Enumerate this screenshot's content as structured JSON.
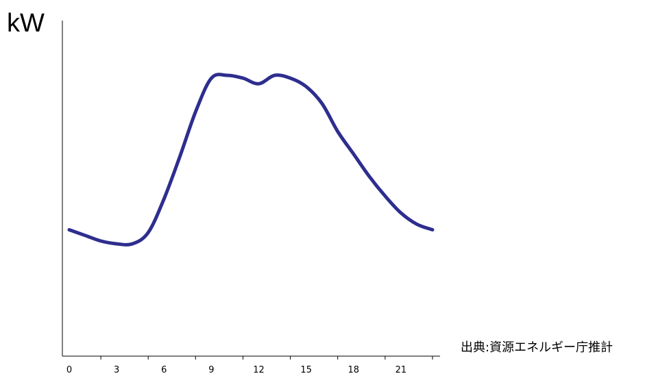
{
  "chart_data": {
    "type": "line",
    "title": "",
    "ylabel": "kW",
    "xlabel": "",
    "source": "出典:資源エネルギー庁推計",
    "x_ticks": [
      "0",
      "3",
      "6",
      "9",
      "12",
      "15",
      "18",
      "21"
    ],
    "xlim": [
      0,
      23
    ],
    "grid": false,
    "y_ticks_shown": false,
    "series": [
      {
        "color": "#2e2e8f",
        "x": [
          0,
          1,
          2,
          3,
          4,
          5,
          6,
          7,
          8,
          9,
          10,
          11,
          12,
          13,
          14,
          15,
          16,
          17,
          18,
          19,
          20,
          21,
          22,
          23
        ],
        "values": [
          0.45,
          0.43,
          0.41,
          0.4,
          0.4,
          0.44,
          0.56,
          0.71,
          0.87,
          0.99,
          1.0,
          0.99,
          0.97,
          1.0,
          0.99,
          0.96,
          0.9,
          0.8,
          0.72,
          0.64,
          0.57,
          0.51,
          0.47,
          0.45
        ]
      }
    ]
  }
}
